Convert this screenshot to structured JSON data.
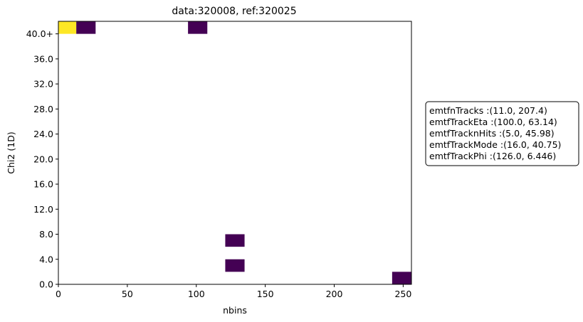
{
  "chart_data": {
    "type": "heatmap",
    "title": "data:320008, ref:320025",
    "xlabel": "nbins",
    "ylabel": "Chi2 (1D)",
    "xlim": [
      0,
      256
    ],
    "ylim": [
      0,
      42
    ],
    "x_ticks": [
      {
        "value": 0,
        "label": "0"
      },
      {
        "value": 50,
        "label": "50"
      },
      {
        "value": 100,
        "label": "100"
      },
      {
        "value": 150,
        "label": "150"
      },
      {
        "value": 200,
        "label": "200"
      },
      {
        "value": 250,
        "label": "250"
      }
    ],
    "y_ticks": [
      {
        "value": 0,
        "label": "0.0"
      },
      {
        "value": 4,
        "label": "4.0"
      },
      {
        "value": 8,
        "label": "8.0"
      },
      {
        "value": 12,
        "label": "12.0"
      },
      {
        "value": 16,
        "label": "16.0"
      },
      {
        "value": 20,
        "label": "20.0"
      },
      {
        "value": 24,
        "label": "24.0"
      },
      {
        "value": 28,
        "label": "28.0"
      },
      {
        "value": 32,
        "label": "32.0"
      },
      {
        "value": 36,
        "label": "36.0"
      },
      {
        "value": 40,
        "label": "40.0+"
      }
    ],
    "grid": false,
    "colormap": [
      "#440154",
      "#fde725"
    ],
    "cells": [
      {
        "x0": 0,
        "x1": 13,
        "y0": 40,
        "y1": 42,
        "color": "#fde725"
      },
      {
        "x0": 13,
        "x1": 27,
        "y0": 40,
        "y1": 42,
        "color": "#440154"
      },
      {
        "x0": 94,
        "x1": 108,
        "y0": 40,
        "y1": 42,
        "color": "#440154"
      },
      {
        "x0": 121,
        "x1": 135,
        "y0": 6,
        "y1": 8,
        "color": "#440154"
      },
      {
        "x0": 121,
        "x1": 135,
        "y0": 2,
        "y1": 4,
        "color": "#440154"
      },
      {
        "x0": 242,
        "x1": 256,
        "y0": 0,
        "y1": 2,
        "color": "#440154"
      }
    ],
    "legend": {
      "placement": "right",
      "entries": [
        "emtfnTracks :(11.0, 207.4)",
        "emtfTrackEta :(100.0, 63.14)",
        "emtfTracknHits :(5.0, 45.98)",
        "emtfTrackMode :(16.0, 40.75)",
        "emtfTrackPhi :(126.0, 6.446)"
      ]
    }
  }
}
